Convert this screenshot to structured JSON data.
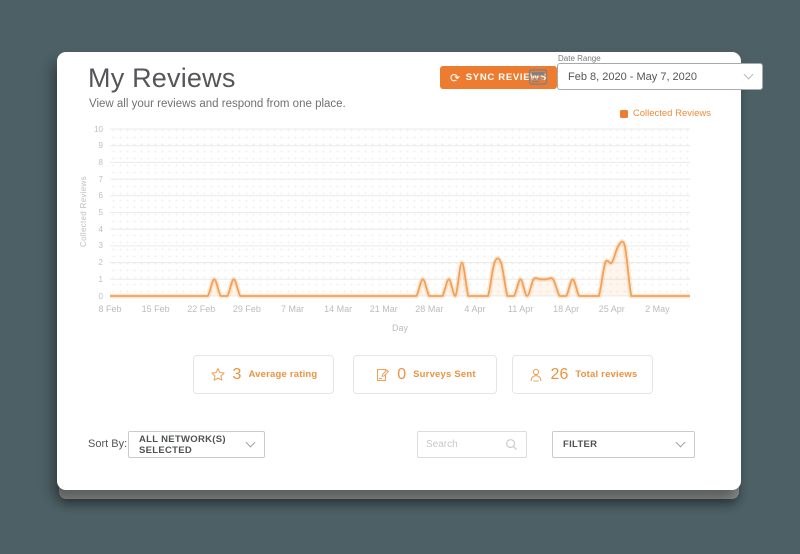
{
  "page": {
    "title": "My Reviews",
    "subtitle": "View all your reviews and respond from one place."
  },
  "header": {
    "sync_button": "SYNC REVIEWS",
    "date_range": {
      "label": "Date Range",
      "value": "Feb 8, 2020 - May 7, 2020"
    }
  },
  "legend": {
    "label": "Collected Reviews"
  },
  "chart_data": {
    "type": "area",
    "title": "",
    "xlabel": "Day",
    "ylabel": "Collected Reviews",
    "ylim": [
      0,
      10
    ],
    "y_ticks": [
      0,
      1,
      2,
      3,
      4,
      5,
      6,
      7,
      8,
      9,
      10
    ],
    "x_start": "Feb 8, 2020",
    "x_end": "May 7, 2020",
    "x_tick_labels": [
      "8 Feb",
      "15 Feb",
      "22 Feb",
      "29 Feb",
      "7 Mar",
      "14 Mar",
      "21 Mar",
      "28 Mar",
      "4 Apr",
      "11 Apr",
      "18 Apr",
      "25 Apr",
      "2 May"
    ],
    "x_tick_indices": [
      0,
      7,
      14,
      21,
      28,
      35,
      42,
      49,
      56,
      63,
      70,
      77,
      84
    ],
    "grid": "horizontal",
    "legend_position": "top-right",
    "series": [
      {
        "name": "Collected Reviews",
        "color": "#F2A156",
        "values": [
          0,
          0,
          0,
          0,
          0,
          0,
          0,
          0,
          0,
          0,
          0,
          0,
          0,
          0,
          0,
          0,
          1,
          0,
          0,
          1,
          0,
          0,
          0,
          0,
          0,
          0,
          0,
          0,
          0,
          0,
          0,
          0,
          0,
          0,
          0,
          0,
          0,
          0,
          0,
          0,
          0,
          0,
          0,
          0,
          0,
          0,
          0,
          0,
          1,
          0,
          0,
          0,
          1,
          0,
          2,
          0,
          0,
          0,
          0,
          2,
          2,
          0,
          0,
          1,
          0,
          1,
          1,
          1,
          1,
          0,
          0,
          1,
          0,
          0,
          0,
          0,
          2,
          2,
          3,
          3,
          0,
          0,
          0,
          0,
          0,
          0,
          0,
          0,
          0,
          0
        ]
      }
    ]
  },
  "stats": [
    {
      "value": "3",
      "label": "Average rating",
      "icon": "star-icon"
    },
    {
      "value": "0",
      "label": "Surveys Sent",
      "icon": "survey-icon"
    },
    {
      "value": "26",
      "label": "Total reviews",
      "icon": "reviews-icon"
    }
  ],
  "toolbar": {
    "sort_by_label": "Sort By:",
    "network_select_value": "ALL NETWORK(S) SELECTED",
    "search_placeholder": "Search",
    "filter_label": "FILTER"
  },
  "icons": {
    "sync_button": "sync-arrows",
    "header_widget": "calendar",
    "search": "magnifier"
  },
  "colors": {
    "background": "#4D6065",
    "accent": "#EE7C30",
    "orange_text": "#EC9241",
    "line": "#F2A156",
    "axis_text": "#BCBEC0",
    "grid": "#ECEAE8"
  }
}
